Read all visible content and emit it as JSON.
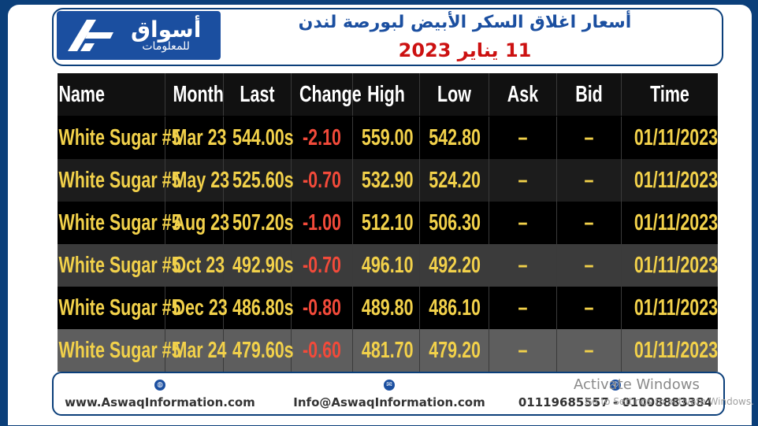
{
  "header": {
    "logo_ar_line1": "أسواق",
    "logo_ar_line2": "للمعلومات",
    "title": "أسعار اغلاق السكر الأبيض لبورصة لندن",
    "date": "11 يناير 2023"
  },
  "table": {
    "columns": [
      "Name",
      "Month",
      "Last",
      "Change",
      "High",
      "Low",
      "Ask",
      "Bid",
      "Time"
    ],
    "rows": [
      [
        "White Sugar #5",
        "Mar 23",
        "544.00s",
        "-2.10",
        "559.00",
        "542.80",
        "–",
        "–",
        "01/11/2023"
      ],
      [
        "White Sugar #5",
        "May 23",
        "525.60s",
        "-0.70",
        "532.90",
        "524.20",
        "–",
        "–",
        "01/11/2023"
      ],
      [
        "White Sugar #5",
        "Aug 23",
        "507.20s",
        "-1.00",
        "512.10",
        "506.30",
        "–",
        "–",
        "01/11/2023"
      ],
      [
        "White Sugar #5",
        "Oct 23",
        "492.90s",
        "-0.70",
        "496.10",
        "492.20",
        "–",
        "–",
        "01/11/2023"
      ],
      [
        "White Sugar #5",
        "Dec 23",
        "486.80s",
        "-0.80",
        "489.80",
        "486.10",
        "–",
        "–",
        "01/11/2023"
      ],
      [
        "White Sugar #5",
        "Mar 24",
        "479.60s",
        "-0.60",
        "481.70",
        "479.20",
        "–",
        "–",
        "01/11/2023"
      ]
    ]
  },
  "footer": {
    "website": "www.AswaqInformation.com",
    "email": "Info@AswaqInformation.com",
    "phones": "01119685557 - 01008883384",
    "website_icon": "globe-icon",
    "email_icon": "envelope-icon",
    "phone_icon": "phone-icon"
  },
  "watermark": {
    "line1": "Activate Windows",
    "line2": "Go to Settings to activate Windows."
  },
  "colors": {
    "brand_blue": "#1b4fa0",
    "value_yellow": "#f2d14a",
    "change_red": "#f24a3a",
    "title_red": "#cc1111"
  }
}
